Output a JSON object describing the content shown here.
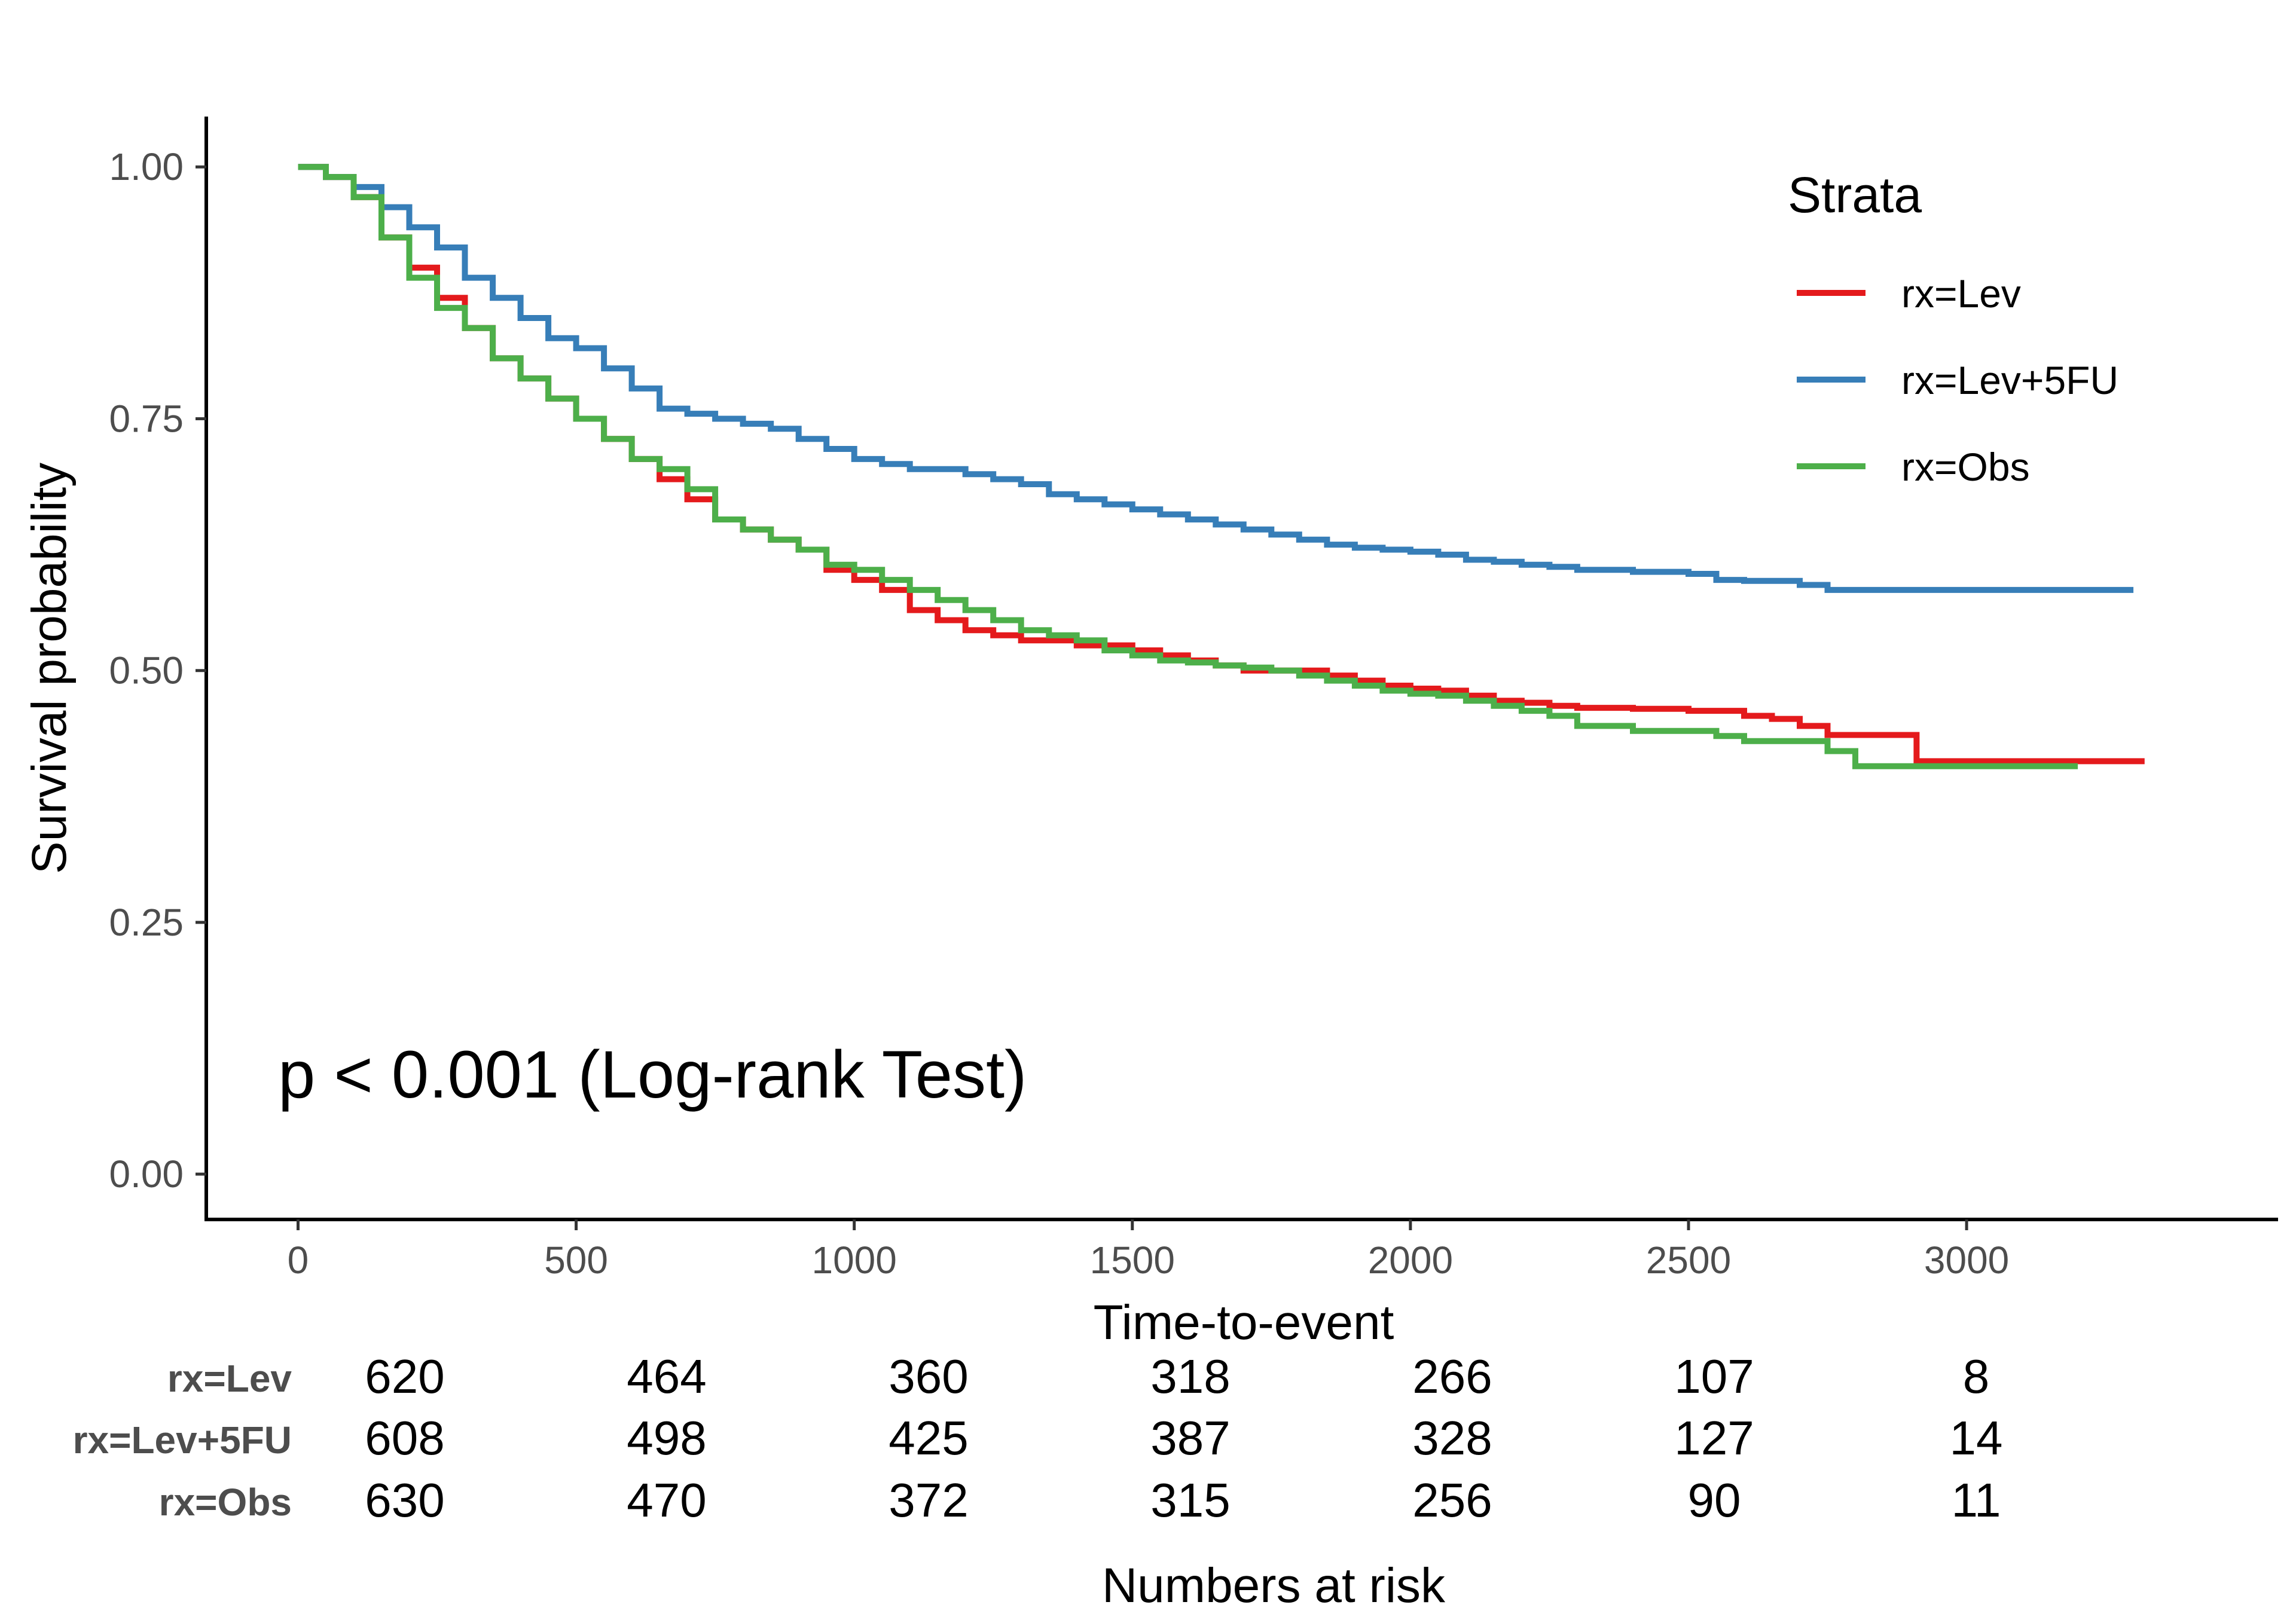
{
  "chart_data": {
    "type": "line",
    "step": true,
    "xlabel": "Time-to-event",
    "ylabel": "Survival probability",
    "xlim": [
      -165,
      3560
    ],
    "ylim": [
      -0.045,
      1.05
    ],
    "x_ticks": [
      0,
      500,
      1000,
      1500,
      2000,
      2500,
      3000
    ],
    "x_tick_labels": [
      "0",
      "500",
      "1000",
      "1500",
      "2000",
      "2500",
      "3000"
    ],
    "y_ticks": [
      0,
      0.25,
      0.5,
      0.75,
      1.0
    ],
    "y_tick_labels": [
      "0.00",
      "0.25",
      "0.50",
      "0.75",
      "1.00"
    ],
    "grid": false,
    "annotation": "p < 0.001 (Log-rank Test)",
    "legend": {
      "title": "Strata",
      "position": "top-right"
    },
    "series": [
      {
        "name": "rx=Lev",
        "color": "#E41A1C",
        "x": [
          0,
          50,
          100,
          150,
          200,
          250,
          300,
          350,
          400,
          450,
          500,
          550,
          600,
          650,
          700,
          750,
          800,
          850,
          900,
          950,
          1000,
          1050,
          1100,
          1150,
          1200,
          1250,
          1300,
          1350,
          1400,
          1450,
          1500,
          1550,
          1600,
          1650,
          1700,
          1750,
          1800,
          1850,
          1900,
          1950,
          2000,
          2050,
          2100,
          2150,
          2200,
          2250,
          2300,
          2400,
          2500,
          2600,
          2650,
          2700,
          2750,
          2800,
          2850,
          2910,
          3000,
          3100,
          3200,
          3320
        ],
        "y": [
          1.0,
          0.99,
          0.97,
          0.93,
          0.9,
          0.87,
          0.84,
          0.81,
          0.79,
          0.77,
          0.75,
          0.73,
          0.71,
          0.69,
          0.67,
          0.65,
          0.64,
          0.63,
          0.62,
          0.6,
          0.59,
          0.58,
          0.56,
          0.55,
          0.54,
          0.535,
          0.53,
          0.53,
          0.525,
          0.525,
          0.52,
          0.515,
          0.51,
          0.505,
          0.5,
          0.5,
          0.5,
          0.495,
          0.49,
          0.485,
          0.482,
          0.48,
          0.475,
          0.47,
          0.468,
          0.465,
          0.463,
          0.462,
          0.46,
          0.455,
          0.452,
          0.445,
          0.436,
          0.436,
          0.436,
          0.41,
          0.41,
          0.41,
          0.41,
          0.41
        ]
      },
      {
        "name": "rx=Lev+5FU",
        "color": "#377EB8",
        "x": [
          0,
          50,
          100,
          150,
          200,
          250,
          300,
          350,
          400,
          450,
          500,
          550,
          600,
          650,
          700,
          750,
          800,
          850,
          900,
          950,
          1000,
          1050,
          1100,
          1150,
          1200,
          1250,
          1300,
          1350,
          1400,
          1450,
          1500,
          1550,
          1600,
          1650,
          1700,
          1750,
          1800,
          1850,
          1900,
          1950,
          2000,
          2050,
          2100,
          2150,
          2200,
          2250,
          2300,
          2400,
          2500,
          2550,
          2600,
          2650,
          2700,
          2750,
          2800,
          2900,
          3000,
          3100,
          3200,
          3300
        ],
        "y": [
          1.0,
          0.99,
          0.98,
          0.96,
          0.94,
          0.92,
          0.89,
          0.87,
          0.85,
          0.83,
          0.82,
          0.8,
          0.78,
          0.76,
          0.755,
          0.75,
          0.745,
          0.74,
          0.73,
          0.72,
          0.71,
          0.705,
          0.7,
          0.7,
          0.695,
          0.69,
          0.685,
          0.675,
          0.67,
          0.665,
          0.66,
          0.655,
          0.65,
          0.645,
          0.64,
          0.635,
          0.63,
          0.625,
          0.622,
          0.62,
          0.618,
          0.615,
          0.61,
          0.608,
          0.605,
          0.603,
          0.6,
          0.598,
          0.596,
          0.59,
          0.589,
          0.589,
          0.585,
          0.58,
          0.58,
          0.58,
          0.58,
          0.58,
          0.58,
          0.58
        ]
      },
      {
        "name": "rx=Obs",
        "color": "#4DAF4A",
        "x": [
          0,
          50,
          100,
          150,
          200,
          250,
          300,
          350,
          400,
          450,
          500,
          550,
          600,
          650,
          700,
          750,
          800,
          850,
          900,
          950,
          1000,
          1050,
          1100,
          1150,
          1200,
          1250,
          1300,
          1350,
          1400,
          1450,
          1500,
          1550,
          1600,
          1650,
          1700,
          1750,
          1800,
          1850,
          1900,
          1950,
          2000,
          2050,
          2100,
          2150,
          2200,
          2250,
          2300,
          2400,
          2500,
          2550,
          2600,
          2700,
          2750,
          2800,
          2900,
          3000,
          3100,
          3200
        ],
        "y": [
          1.0,
          0.99,
          0.97,
          0.93,
          0.89,
          0.86,
          0.84,
          0.81,
          0.79,
          0.77,
          0.75,
          0.73,
          0.71,
          0.7,
          0.68,
          0.65,
          0.64,
          0.63,
          0.62,
          0.605,
          0.6,
          0.59,
          0.58,
          0.57,
          0.56,
          0.55,
          0.54,
          0.535,
          0.53,
          0.52,
          0.515,
          0.51,
          0.508,
          0.505,
          0.503,
          0.5,
          0.495,
          0.49,
          0.485,
          0.48,
          0.477,
          0.475,
          0.47,
          0.465,
          0.46,
          0.455,
          0.445,
          0.44,
          0.44,
          0.435,
          0.43,
          0.43,
          0.42,
          0.405,
          0.405,
          0.405,
          0.405,
          0.405
        ]
      }
    ],
    "risk_table": {
      "title": "Numbers at risk",
      "times": [
        0,
        500,
        1000,
        1500,
        2000,
        2500,
        3000
      ],
      "rows": [
        {
          "label": "rx=Lev",
          "values": [
            "620",
            "464",
            "360",
            "318",
            "266",
            "107",
            "8"
          ]
        },
        {
          "label": "rx=Lev+5FU",
          "values": [
            "608",
            "498",
            "425",
            "387",
            "328",
            "127",
            "14"
          ]
        },
        {
          "label": "rx=Obs",
          "values": [
            "630",
            "470",
            "372",
            "315",
            "256",
            "90",
            "11"
          ]
        }
      ]
    }
  }
}
